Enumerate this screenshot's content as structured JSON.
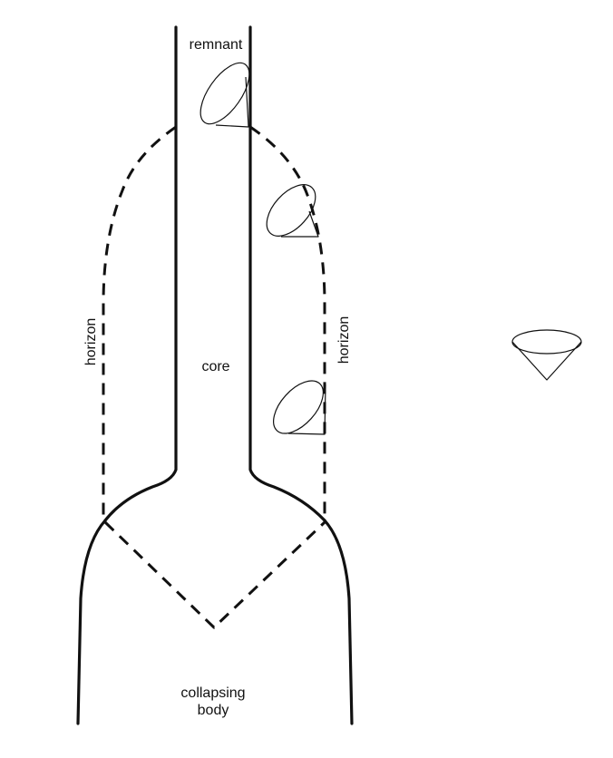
{
  "labels": {
    "remnant": "remnant",
    "core": "core",
    "horizon_left": "horizon",
    "horizon_right": "horizon",
    "collapsing_body_line1": "collapsing",
    "collapsing_body_line2": "body"
  },
  "colors": {
    "ink": "#111111",
    "background": "#ffffff"
  }
}
